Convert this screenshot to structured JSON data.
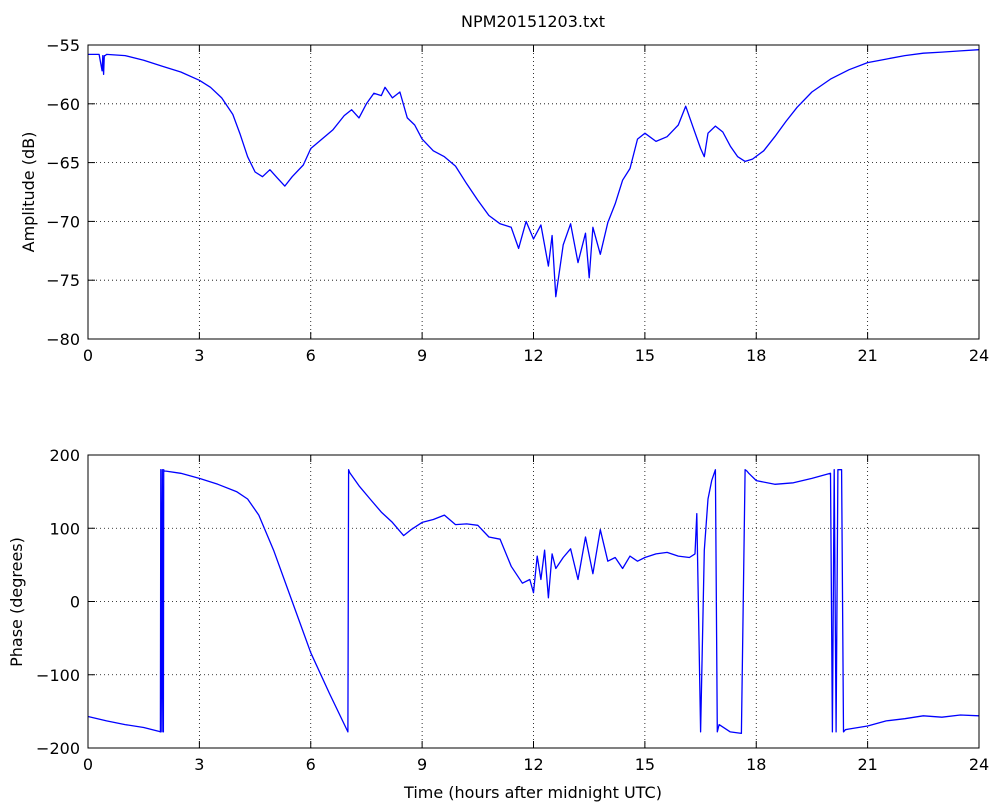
{
  "chart_data": [
    {
      "type": "line",
      "title": "NPM20151203.txt",
      "xlabel": "",
      "ylabel": "Amplitude (dB)",
      "xlim": [
        0,
        24
      ],
      "ylim": [
        -80,
        -55
      ],
      "xticks": [
        0,
        3,
        6,
        9,
        12,
        15,
        18,
        21,
        24
      ],
      "yticks": [
        -55,
        -60,
        -65,
        -70,
        -75,
        -80
      ],
      "ytick_labels": [
        "−55",
        "−60",
        "−65",
        "−70",
        "−75",
        "−80"
      ],
      "grid": true,
      "series": [
        {
          "color": "#0000ff",
          "x": [
            0.0,
            0.3,
            0.38,
            0.4,
            0.42,
            0.44,
            0.46,
            0.5,
            1.0,
            1.5,
            2.0,
            2.5,
            3.0,
            3.3,
            3.6,
            3.9,
            4.1,
            4.3,
            4.5,
            4.7,
            4.9,
            5.1,
            5.3,
            5.5,
            5.8,
            6.0,
            6.3,
            6.6,
            6.9,
            7.1,
            7.3,
            7.5,
            7.7,
            7.9,
            8.0,
            8.2,
            8.4,
            8.6,
            8.8,
            9.0,
            9.3,
            9.6,
            9.9,
            10.2,
            10.5,
            10.8,
            11.1,
            11.4,
            11.6,
            11.8,
            12.0,
            12.2,
            12.4,
            12.5,
            12.6,
            12.8,
            13.0,
            13.2,
            13.4,
            13.5,
            13.6,
            13.8,
            14.0,
            14.2,
            14.4,
            14.6,
            14.8,
            15.0,
            15.3,
            15.6,
            15.9,
            16.1,
            16.3,
            16.5,
            16.6,
            16.7,
            16.9,
            17.1,
            17.3,
            17.5,
            17.7,
            17.9,
            18.2,
            18.5,
            18.8,
            19.1,
            19.5,
            20.0,
            20.5,
            21.0,
            21.5,
            22.0,
            22.5,
            23.0,
            23.5,
            24.0
          ],
          "y": [
            -55.8,
            -55.8,
            -57.2,
            -55.9,
            -57.5,
            -55.9,
            -55.9,
            -55.8,
            -55.9,
            -56.3,
            -56.8,
            -57.3,
            -58.0,
            -58.6,
            -59.5,
            -60.9,
            -62.6,
            -64.5,
            -65.8,
            -66.2,
            -65.6,
            -66.3,
            -67.0,
            -66.2,
            -65.2,
            -63.8,
            -63.0,
            -62.2,
            -61.0,
            -60.5,
            -61.2,
            -60.0,
            -59.1,
            -59.3,
            -58.6,
            -59.5,
            -59.0,
            -61.2,
            -61.8,
            -63.0,
            -64.0,
            -64.5,
            -65.3,
            -66.8,
            -68.2,
            -69.5,
            -70.2,
            -70.5,
            -72.3,
            -70.0,
            -71.5,
            -70.3,
            -73.8,
            -71.2,
            -76.4,
            -72.0,
            -70.2,
            -73.5,
            -71.0,
            -74.8,
            -70.5,
            -72.8,
            -70.1,
            -68.5,
            -66.5,
            -65.5,
            -63.0,
            -62.5,
            -63.2,
            -62.8,
            -61.8,
            -60.2,
            -62.0,
            -63.8,
            -64.5,
            -62.5,
            -61.9,
            -62.4,
            -63.6,
            -64.5,
            -64.9,
            -64.7,
            -64.0,
            -62.8,
            -61.5,
            -60.3,
            -59.0,
            -57.9,
            -57.1,
            -56.5,
            -56.2,
            -55.9,
            -55.7,
            -55.6,
            -55.5,
            -55.4
          ]
        }
      ]
    },
    {
      "type": "line",
      "title": "",
      "xlabel": "Time (hours after midnight UTC)",
      "ylabel": "Phase (degrees)",
      "xlim": [
        0,
        24
      ],
      "ylim": [
        -200,
        200
      ],
      "xticks": [
        0,
        3,
        6,
        9,
        12,
        15,
        18,
        21,
        24
      ],
      "yticks": [
        200,
        100,
        0,
        -100,
        -200
      ],
      "ytick_labels": [
        "200",
        "100",
        "0",
        "−100",
        "−200"
      ],
      "grid": true,
      "series": [
        {
          "color": "#0000ff",
          "x": [
            0.0,
            0.5,
            1.0,
            1.5,
            1.9,
            1.95,
            1.96,
            1.99,
            2.0,
            2.03,
            2.04,
            2.05,
            2.1,
            2.5,
            3.0,
            3.5,
            4.0,
            4.3,
            4.6,
            5.0,
            5.5,
            6.0,
            6.5,
            7.0,
            7.02,
            7.05,
            7.3,
            7.6,
            7.9,
            8.2,
            8.5,
            8.7,
            9.0,
            9.3,
            9.6,
            9.9,
            10.2,
            10.5,
            10.8,
            11.1,
            11.4,
            11.7,
            11.9,
            12.0,
            12.1,
            12.2,
            12.3,
            12.4,
            12.5,
            12.6,
            12.8,
            13.0,
            13.2,
            13.4,
            13.6,
            13.8,
            14.0,
            14.2,
            14.4,
            14.6,
            14.8,
            15.0,
            15.3,
            15.6,
            15.9,
            16.2,
            16.35,
            16.4,
            16.5,
            16.6,
            16.7,
            16.8,
            16.9,
            16.95,
            17.0,
            17.3,
            17.6,
            17.7,
            17.75,
            17.8,
            18.0,
            18.5,
            19.0,
            19.5,
            20.0,
            20.05,
            20.1,
            20.15,
            20.2,
            20.3,
            20.35,
            20.4,
            20.5,
            21.0,
            21.5,
            22.0,
            22.5,
            23.0,
            23.5,
            24.0
          ],
          "y": [
            -157,
            -163,
            -168,
            -172,
            -177,
            -178,
            180,
            -178,
            180,
            -178,
            180,
            178,
            178,
            175,
            168,
            160,
            150,
            140,
            118,
            70,
            0,
            -70,
            -125,
            -178,
            180,
            176,
            158,
            140,
            122,
            108,
            90,
            98,
            108,
            112,
            118,
            105,
            106,
            104,
            88,
            85,
            48,
            25,
            30,
            12,
            62,
            30,
            70,
            5,
            65,
            45,
            60,
            72,
            30,
            88,
            38,
            98,
            55,
            60,
            45,
            62,
            55,
            60,
            65,
            67,
            62,
            60,
            65,
            120,
            -178,
            70,
            140,
            165,
            180,
            -178,
            -168,
            -178,
            -180,
            180,
            178,
            175,
            165,
            160,
            162,
            168,
            175,
            -178,
            180,
            -178,
            180,
            180,
            -178,
            -175,
            -174,
            -170,
            -163,
            -160,
            -156,
            -158,
            -155,
            -156
          ]
        }
      ]
    }
  ]
}
